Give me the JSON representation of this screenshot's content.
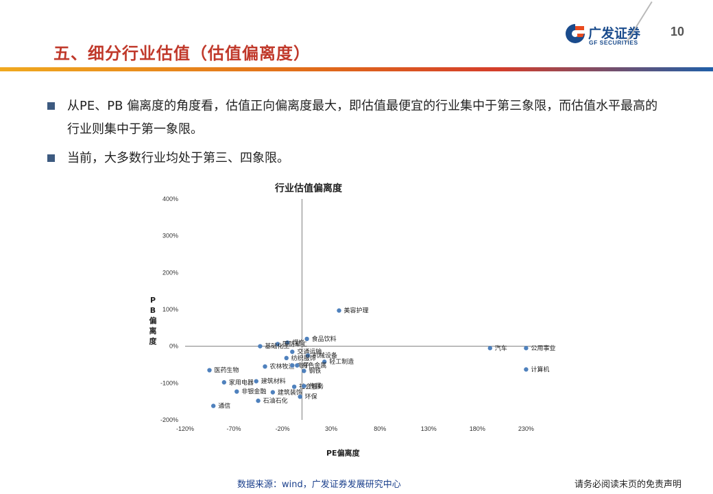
{
  "header": {
    "title": "五、细分行业估值（估值偏离度）",
    "page_number": "10",
    "logo": {
      "cn": "广发证券",
      "en": "GF SECURITIES"
    }
  },
  "bullets": [
    {
      "text": "从PE、PB 偏离度的角度看，估值正向偏离度最大，即估值最便宜的行业集中于第三象限，而估值水平最高的行业则集中于第一象限。"
    },
    {
      "text": "当前，大多数行业均处于第三、四象限。"
    }
  ],
  "chart_data": {
    "type": "scatter",
    "title": "行业估值偏离度",
    "xlabel": "PE偏离度",
    "ylabel": "PB偏离度",
    "xlim": [
      -120,
      260
    ],
    "ylim": [
      -200,
      400
    ],
    "x_ticks": [
      -120,
      -70,
      -20,
      30,
      80,
      130,
      180,
      230
    ],
    "y_ticks": [
      400,
      300,
      200,
      100,
      0,
      -100,
      -200
    ],
    "x_tick_labels": [
      "-120%",
      "-70%",
      "-20%",
      "30%",
      "80%",
      "130%",
      "180%",
      "230%"
    ],
    "y_tick_labels": [
      "400%",
      "300%",
      "200%",
      "100%",
      "0%",
      "-100%",
      "-200%"
    ],
    "unit": "%",
    "grid": false,
    "point_color": "#4f81bd",
    "points": [
      {
        "label": "美容护理",
        "x": 38,
        "y": 97
      },
      {
        "label": "煤炭",
        "x": -15,
        "y": 10
      },
      {
        "label": "食品饮料",
        "x": 5,
        "y": 20
      },
      {
        "label": "国防军工",
        "x": -25,
        "y": 6
      },
      {
        "label": "基础化工",
        "x": -43,
        "y": 0
      },
      {
        "label": "交通运输",
        "x": -10,
        "y": -15
      },
      {
        "label": "机械设备",
        "x": 6,
        "y": -25
      },
      {
        "label": "轻工制造",
        "x": 23,
        "y": -42
      },
      {
        "label": "纺织服饰",
        "x": -16,
        "y": -32
      },
      {
        "label": "农林牧渔",
        "x": -38,
        "y": -55
      },
      {
        "label": "电子",
        "x": -10,
        "y": -52
      },
      {
        "label": "医药生物",
        "x": -95,
        "y": -65
      },
      {
        "label": "钢铁",
        "x": 2,
        "y": -67
      },
      {
        "label": "有色金属",
        "x": -5,
        "y": -52
      },
      {
        "label": "建筑材料",
        "x": -47,
        "y": -95
      },
      {
        "label": "家用电器",
        "x": -80,
        "y": -98
      },
      {
        "label": "社会服务",
        "x": -8,
        "y": -110
      },
      {
        "label": "传媒",
        "x": 2,
        "y": -108
      },
      {
        "label": "非银金融",
        "x": -67,
        "y": -123
      },
      {
        "label": "建筑装饰",
        "x": -30,
        "y": -125
      },
      {
        "label": "环保",
        "x": -2,
        "y": -137
      },
      {
        "label": "石油石化",
        "x": -45,
        "y": -148
      },
      {
        "label": "通信",
        "x": -91,
        "y": -162
      },
      {
        "label": "汽车",
        "x": 193,
        "y": -5
      },
      {
        "label": "公用事业",
        "x": 230,
        "y": -5
      },
      {
        "label": "计算机",
        "x": 230,
        "y": -63
      }
    ]
  },
  "footer": {
    "source": "数据来源：wind，广发证券发展研究中心",
    "disclaimer": "请务必阅读末页的免责声明"
  }
}
